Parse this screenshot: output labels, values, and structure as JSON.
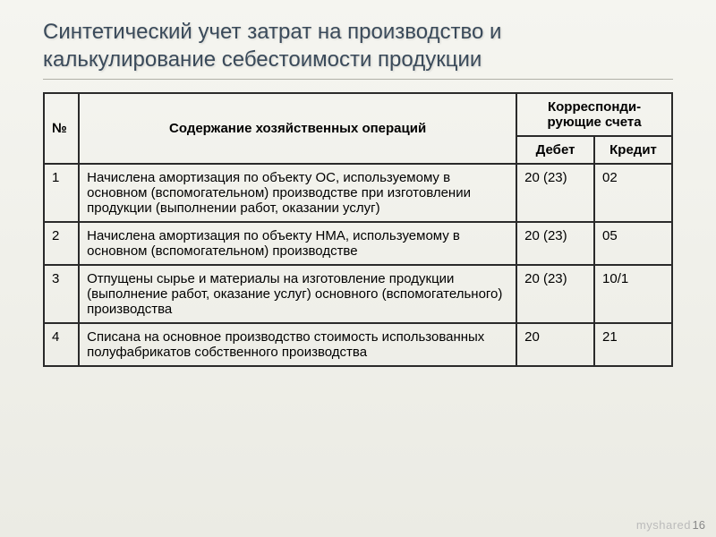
{
  "title": "Синтетический учет затрат на производство и калькулирование себестоимости продукции",
  "headers": {
    "num": "№",
    "content": "Содержание хозяйственных операций",
    "accounts": "Корреспонди-\nрующие счета",
    "debit": "Дебет",
    "credit": "Кредит"
  },
  "rows": [
    {
      "num": "1",
      "content": "Начислена амортизация по объекту ОС, используемому в основном (вспомогательном) производстве при изготовлении продукции (выполнении работ, оказании услуг)",
      "debit": "20 (23)",
      "credit": "02"
    },
    {
      "num": "2",
      "content": "Начислена амортизация по объекту НМА, используемому в основном (вспомогательном) производстве",
      "debit": "20 (23)",
      "credit": "05"
    },
    {
      "num": "3",
      "content": "Отпущены сырье и материалы на изготовление продукции (выполнение работ, оказание услуг) основного (вспомогательного) производства",
      "debit": "20 (23)",
      "credit": "10/1"
    },
    {
      "num": "4",
      "content": "Списана на основное производство стоимость использованных полуфабрикатов собственного производства",
      "debit": "20",
      "credit": "21"
    }
  ],
  "pageNumber": "16",
  "watermark": "myshared"
}
